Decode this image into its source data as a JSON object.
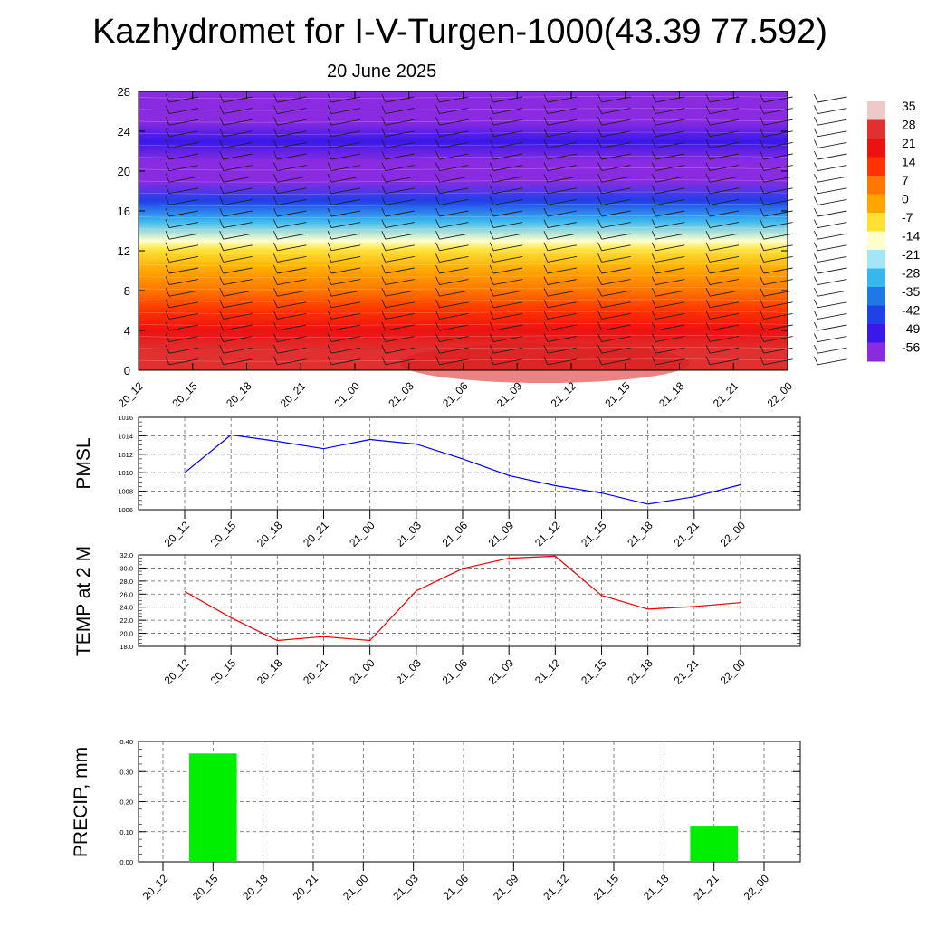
{
  "title": "Kazhydromet for I-V-Turgen-1000(43.39 77.592)",
  "subtitle": "20 June 2025",
  "time_labels": [
    "20_12",
    "20_15",
    "20_18",
    "20_21",
    "21_00",
    "21_03",
    "21_06",
    "21_09",
    "21_12",
    "21_15",
    "21_18",
    "21_21",
    "22_00"
  ],
  "chart_data": [
    {
      "type": "heatmap",
      "name": "temperature-height-section",
      "y_ticks": [
        0,
        4,
        8,
        12,
        16,
        20,
        24,
        28
      ],
      "ylim": [
        0,
        28
      ],
      "x": [
        "20_12",
        "20_15",
        "20_18",
        "20_21",
        "21_00",
        "21_03",
        "21_06",
        "21_09",
        "21_12",
        "21_15",
        "21_18",
        "21_21",
        "22_00"
      ],
      "profile": [
        [
          0,
          30
        ],
        [
          2,
          27
        ],
        [
          4,
          22
        ],
        [
          6,
          16
        ],
        [
          8,
          9
        ],
        [
          10,
          2
        ],
        [
          12,
          -7
        ],
        [
          13,
          -14
        ],
        [
          15,
          -30
        ],
        [
          17,
          -45
        ],
        [
          19,
          -53
        ],
        [
          21,
          -56
        ],
        [
          23,
          -52
        ],
        [
          25,
          -57
        ],
        [
          28,
          -57
        ]
      ],
      "colorbar": {
        "labels": [
          "35",
          "28",
          "21",
          "14",
          "7",
          "0",
          "-7",
          "-14",
          "-21",
          "-28",
          "-35",
          "-42",
          "-49",
          "-56"
        ],
        "colors": [
          "#f0c8c8",
          "#e03030",
          "#ee1111",
          "#ff3300",
          "#ff7700",
          "#ffa500",
          "#ffe033",
          "#ffffcc",
          "#a8e4f8",
          "#38b6ee",
          "#1e78e8",
          "#2040e8",
          "#3a18e8",
          "#8a2be2"
        ]
      },
      "wind_barbs": true
    },
    {
      "type": "line",
      "ylabel": "PMSL",
      "x": [
        "20_12",
        "20_15",
        "20_18",
        "20_21",
        "21_00",
        "21_03",
        "21_06",
        "21_09",
        "21_12",
        "21_15",
        "21_18",
        "21_21",
        "22_00"
      ],
      "values": [
        1010.0,
        1014.1,
        1013.4,
        1012.6,
        1013.6,
        1013.1,
        1011.5,
        1009.7,
        1008.6,
        1007.8,
        1006.6,
        1007.4,
        1008.7
      ],
      "ylim": [
        1006,
        1016
      ],
      "y_ticks": [
        "1006",
        "1008",
        "1010",
        "1012",
        "1014",
        "1016"
      ],
      "color": "#0000ee",
      "grid": true
    },
    {
      "type": "line",
      "ylabel": "TEMP at 2 M",
      "x": [
        "20_12",
        "20_15",
        "20_18",
        "20_21",
        "21_00",
        "21_03",
        "21_06",
        "21_09",
        "21_12",
        "21_15",
        "21_18",
        "21_21",
        "22_00"
      ],
      "values": [
        26.4,
        22.4,
        18.9,
        19.5,
        18.9,
        26.5,
        29.9,
        31.5,
        31.8,
        25.8,
        23.7,
        24.1,
        24.7
      ],
      "ylim": [
        18,
        32
      ],
      "y_ticks": [
        "18.0",
        "20.0",
        "22.0",
        "24.0",
        "26.0",
        "28.0",
        "30.0",
        "32.0"
      ],
      "color": "#ee0000",
      "grid": true
    },
    {
      "type": "bar",
      "ylabel": "PRECIP, mm",
      "x": [
        "20_12",
        "20_15",
        "20_18",
        "20_21",
        "21_00",
        "21_03",
        "21_06",
        "21_09",
        "21_12",
        "21_15",
        "21_18",
        "21_21",
        "22_00"
      ],
      "values": [
        0,
        0.36,
        0,
        0,
        0,
        0,
        0,
        0,
        0,
        0,
        0,
        0.12,
        0
      ],
      "ylim": [
        0,
        0.4
      ],
      "y_ticks": [
        "0.00",
        "0.10",
        "0.20",
        "0.30",
        "0.40"
      ],
      "color": "#00ee00",
      "grid": true
    }
  ]
}
